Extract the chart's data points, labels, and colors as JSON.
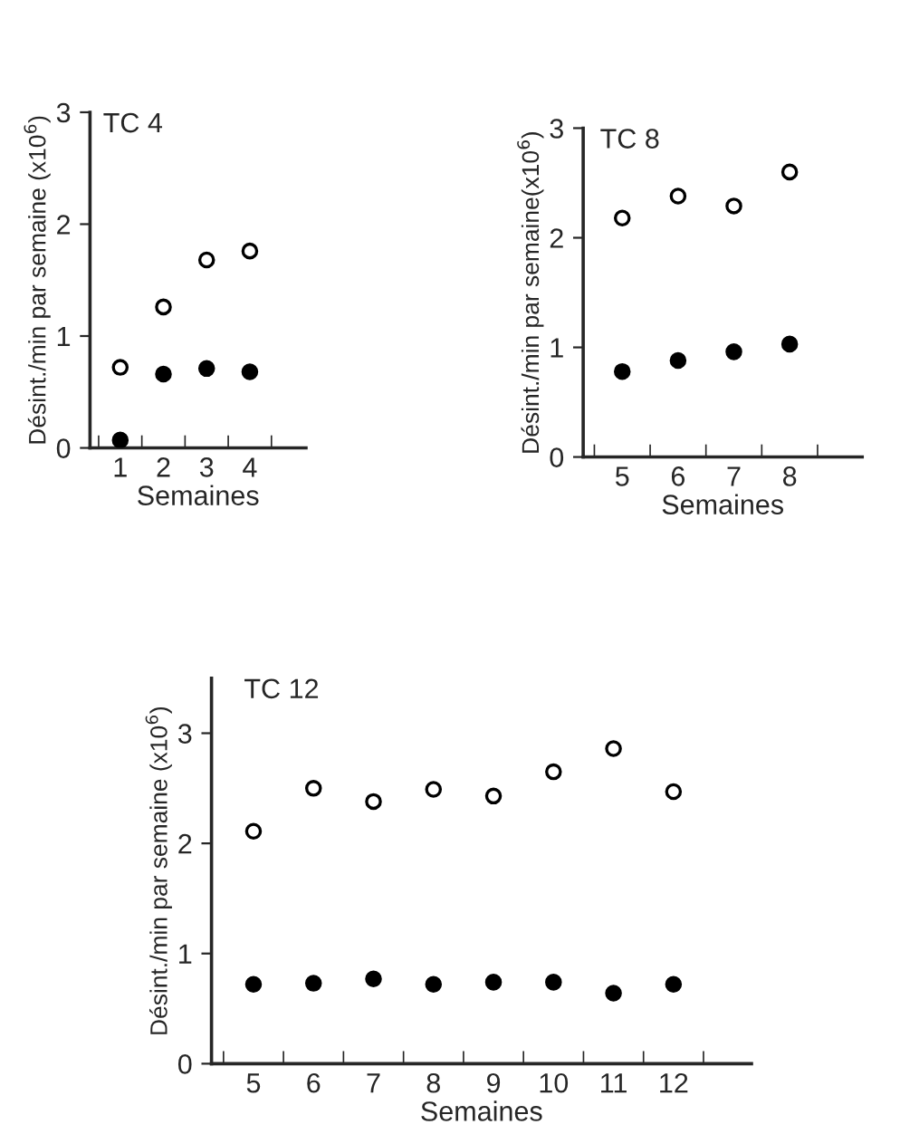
{
  "chart_data": [
    {
      "type": "scatter",
      "title": "TC 4",
      "xlabel": "Semaines",
      "ylabel": "Désint./min par semaine (x10$^{6}$)",
      "categories": [
        "1",
        "2",
        "3",
        "4"
      ],
      "ylim": [
        0,
        3
      ],
      "yticks": [
        0,
        1,
        2,
        3
      ],
      "marker": "circle",
      "grid": false,
      "legend": false,
      "series": [
        {
          "color": "#ffffff",
          "values": [
            0.72,
            1.26,
            1.68,
            1.76
          ]
        },
        {
          "color": "#000000",
          "values": [
            0.07,
            0.66,
            0.71,
            0.68
          ]
        }
      ]
    },
    {
      "type": "scatter",
      "title": "TC 8",
      "xlabel": "Semaines",
      "ylabel": "Désint./min par semaine(x10$^{6}$)",
      "categories": [
        "5",
        "6",
        "7",
        "8"
      ],
      "ylim": [
        0,
        3
      ],
      "yticks": [
        0,
        1,
        2,
        3
      ],
      "marker": "circle",
      "grid": false,
      "legend": false,
      "series": [
        {
          "color": "#ffffff",
          "values": [
            2.18,
            2.38,
            2.29,
            2.6
          ]
        },
        {
          "color": "#000000",
          "values": [
            0.78,
            0.88,
            0.96,
            1.03
          ]
        }
      ]
    },
    {
      "type": "scatter",
      "title": "TC 12",
      "xlabel": "Semaines",
      "ylabel": "Désint./min par semaine (x10$^{6}$)",
      "categories": [
        "5",
        "6",
        "7",
        "8",
        "9",
        "10",
        "11",
        "12"
      ],
      "ylim": [
        0,
        3.5
      ],
      "yticks": [
        0,
        1,
        2,
        3
      ],
      "marker": "circle",
      "grid": false,
      "legend": false,
      "series": [
        {
          "color": "#ffffff",
          "values": [
            2.11,
            2.5,
            2.38,
            2.49,
            2.43,
            2.65,
            2.86,
            2.47
          ]
        },
        {
          "color": "#000000",
          "values": [
            0.72,
            0.73,
            0.77,
            0.72,
            0.74,
            0.74,
            0.64,
            0.72
          ]
        }
      ]
    }
  ]
}
